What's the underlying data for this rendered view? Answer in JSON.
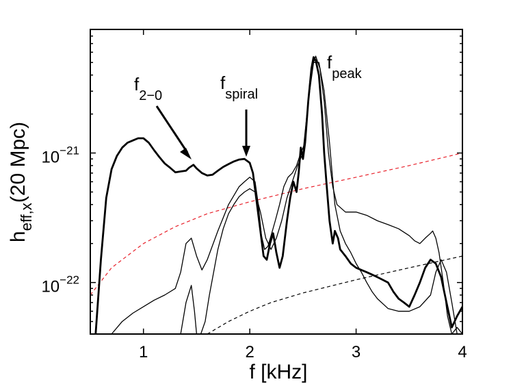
{
  "chart_data": {
    "type": "line",
    "title": "",
    "xlabel": "f [kHz]",
    "ylabel": {
      "base": "h",
      "subscript": "eff,x",
      "suffix": "(20 Mpc)"
    },
    "yscale": "log",
    "xlim": [
      0.5,
      4.0
    ],
    "ylim": [
      4e-23,
      9e-21
    ],
    "grid": false,
    "x_ticks": [
      {
        "value": 1,
        "label": "1"
      },
      {
        "value": 2,
        "label": "2"
      },
      {
        "value": 3,
        "label": "3"
      },
      {
        "value": 4,
        "label": "4"
      }
    ],
    "y_ticks": [
      {
        "value": 1e-22,
        "base": "10",
        "exponent": "−22"
      },
      {
        "value": 1e-21,
        "base": "10",
        "exponent": "−21"
      }
    ],
    "annotations": [
      {
        "base": "f",
        "subscript": "2−0",
        "x": 1.47,
        "y": 8.2e-22
      },
      {
        "base": "f",
        "subscript": "spiral",
        "x": 1.95,
        "y": 9e-22
      },
      {
        "base": "f",
        "subscript": "peak",
        "x": 2.62,
        "y": 6.5e-21
      }
    ],
    "series": [
      {
        "name": "thick",
        "color": "#000000",
        "style": "solid-thick",
        "x": [
          0.55,
          0.6,
          0.65,
          0.7,
          0.75,
          0.8,
          0.85,
          0.9,
          0.95,
          1.0,
          1.05,
          1.1,
          1.15,
          1.2,
          1.25,
          1.3,
          1.35,
          1.4,
          1.43,
          1.47,
          1.5,
          1.55,
          1.6,
          1.65,
          1.7,
          1.75,
          1.8,
          1.85,
          1.9,
          1.95,
          2.0,
          2.03,
          2.06,
          2.1,
          2.13,
          2.16,
          2.19,
          2.22,
          2.25,
          2.28,
          2.31,
          2.35,
          2.38,
          2.41,
          2.44,
          2.46,
          2.48,
          2.5,
          2.52,
          2.55,
          2.58,
          2.6,
          2.62,
          2.65,
          2.68,
          2.7,
          2.72,
          2.75,
          2.78,
          2.8,
          2.83,
          2.85,
          2.9,
          2.95,
          3.0,
          3.05,
          3.1,
          3.15,
          3.2,
          3.25,
          3.3,
          3.35,
          3.4,
          3.45,
          3.5,
          3.55,
          3.6,
          3.65,
          3.7,
          3.75,
          3.8,
          3.85,
          3.9,
          3.95,
          4.0
        ],
        "y": [
          4e-23,
          1.5e-22,
          4.5e-22,
          7.5e-22,
          9.5e-22,
          1.1e-21,
          1.2e-21,
          1.25e-21,
          1.3e-21,
          1.3e-21,
          1.2e-21,
          1.05e-21,
          9.3e-22,
          8.3e-22,
          7.7e-22,
          7.1e-22,
          7.2e-22,
          7.3e-22,
          7.7e-22,
          8.1e-22,
          7.6e-22,
          7e-22,
          6.7e-22,
          6.8e-22,
          7.3e-22,
          7.8e-22,
          8.2e-22,
          8.6e-22,
          8.9e-22,
          9e-22,
          8.4e-22,
          7e-22,
          4.5e-22,
          2.5e-22,
          1.6e-22,
          1.5e-22,
          2e-22,
          2.4e-22,
          1.7e-22,
          1.3e-22,
          1.6e-22,
          3e-22,
          4.5e-22,
          6e-22,
          5e-22,
          7e-22,
          1.1e-21,
          9e-22,
          1.2e-21,
          2.5e-21,
          4.5e-21,
          5.5e-21,
          5.2e-21,
          4e-21,
          2e-21,
          1e-21,
          6e-22,
          3e-22,
          2e-22,
          2.5e-22,
          2.2e-22,
          1.8e-22,
          1.6e-22,
          1.4e-22,
          1.3e-22,
          1.25e-22,
          1.2e-22,
          1.15e-22,
          1.1e-22,
          1.05e-22,
          1e-22,
          8.5e-23,
          7.5e-23,
          7e-23,
          6.5e-23,
          8e-23,
          1e-22,
          1.3e-22,
          1.5e-22,
          1.4e-22,
          1.1e-22,
          7e-23,
          4.5e-23,
          5.5e-23,
          6.5e-23
        ]
      },
      {
        "name": "thin-upper",
        "color": "#000000",
        "style": "solid-thin",
        "x": [
          0.7,
          0.8,
          0.9,
          1.0,
          1.1,
          1.2,
          1.3,
          1.35,
          1.4,
          1.45,
          1.5,
          1.55,
          1.6,
          1.7,
          1.8,
          1.9,
          1.95,
          2.0,
          2.05,
          2.08,
          2.11,
          2.14,
          2.17,
          2.2,
          2.24,
          2.28,
          2.32,
          2.36,
          2.4,
          2.44,
          2.48,
          2.52,
          2.55,
          2.58,
          2.62,
          2.66,
          2.7,
          2.74,
          2.78,
          2.82,
          2.9,
          3.0,
          3.1,
          3.2,
          3.3,
          3.4,
          3.5,
          3.55,
          3.6,
          3.65,
          3.7,
          3.72,
          3.75,
          3.78,
          3.82,
          3.86,
          3.9,
          3.95,
          4.0
        ],
        "y": [
          4e-23,
          5e-23,
          5.8e-23,
          6.5e-23,
          7.3e-23,
          8e-23,
          9e-23,
          1.2e-22,
          2e-22,
          2.2e-22,
          1.6e-22,
          1.25e-22,
          1.5e-22,
          2.5e-22,
          4e-22,
          5.5e-22,
          6e-22,
          6.5e-22,
          6e-22,
          4e-22,
          2.3e-22,
          1.8e-22,
          1.9e-22,
          2.3e-22,
          3e-22,
          4e-22,
          5.5e-22,
          6.5e-22,
          7e-22,
          8e-22,
          1e-21,
          1.2e-21,
          2.5e-21,
          4.5e-21,
          5.6e-21,
          4.5e-21,
          2.5e-21,
          1e-21,
          5.5e-22,
          4e-22,
          3.5e-22,
          3.5e-22,
          3.3e-22,
          3e-22,
          2.8e-22,
          2.6e-22,
          2.3e-22,
          2.1e-22,
          2e-22,
          2.2e-22,
          2.4e-22,
          2.5e-22,
          2.2e-22,
          1.7e-22,
          1e-22,
          5.5e-23,
          4e-23,
          4.5e-23,
          4e-23
        ]
      },
      {
        "name": "thin-lower",
        "color": "#000000",
        "style": "solid-thin",
        "x": [
          1.35,
          1.4,
          1.45,
          1.48,
          1.5,
          1.52,
          1.58,
          1.62,
          1.66,
          1.7,
          1.75,
          1.8,
          1.85,
          1.9,
          1.95,
          2.0,
          2.05,
          2.1,
          2.15,
          2.2,
          2.25,
          2.3,
          2.35,
          2.4,
          2.45,
          2.5,
          2.55,
          2.6,
          2.65,
          2.7,
          2.75,
          2.8,
          2.85,
          2.9,
          2.95,
          3.0,
          3.05,
          3.1,
          3.15,
          3.2,
          3.3,
          3.4,
          3.5,
          3.6,
          3.7,
          3.75,
          3.8,
          3.85,
          3.9,
          3.95,
          4.0
        ],
        "y": [
          4e-23,
          7e-23,
          9.5e-23,
          6e-23,
          4e-23,
          3.6e-23,
          5e-23,
          8e-23,
          1.2e-22,
          1.8e-22,
          2.6e-22,
          3.4e-22,
          4e-22,
          4.6e-22,
          5e-22,
          5.3e-22,
          5e-22,
          3.5e-22,
          2.2e-22,
          1.8e-22,
          2.2e-22,
          3e-22,
          4.5e-22,
          6e-22,
          8e-22,
          1e-21,
          2.5e-21,
          5e-21,
          5e-21,
          3e-21,
          1.2e-21,
          4e-22,
          2.5e-22,
          2e-22,
          1.7e-22,
          1.4e-22,
          1.2e-22,
          1e-22,
          8.5e-23,
          7.5e-23,
          6.3e-23,
          6e-23,
          6e-23,
          6.5e-23,
          8e-23,
          1.2e-22,
          1.5e-22,
          1.2e-22,
          7e-23,
          4e-23,
          3.6e-23
        ]
      },
      {
        "name": "red-dashed",
        "color": "#e8202a",
        "style": "dashed",
        "x": [
          0.5,
          0.7,
          1.0,
          1.3,
          1.6,
          2.0,
          2.5,
          3.0,
          3.5,
          4.0
        ],
        "y": [
          8e-23,
          1.3e-22,
          2e-22,
          2.7e-22,
          3.4e-22,
          4.2e-22,
          5.3e-22,
          6.5e-22,
          8e-22,
          1e-21
        ]
      },
      {
        "name": "black-dashed",
        "color": "#000000",
        "style": "dashed",
        "x": [
          1.6,
          1.8,
          2.0,
          2.2,
          2.5,
          3.0,
          3.5,
          4.0
        ],
        "y": [
          4e-23,
          5e-23,
          6e-23,
          7e-23,
          8.3e-23,
          1.05e-22,
          1.3e-22,
          1.6e-22
        ]
      }
    ]
  }
}
